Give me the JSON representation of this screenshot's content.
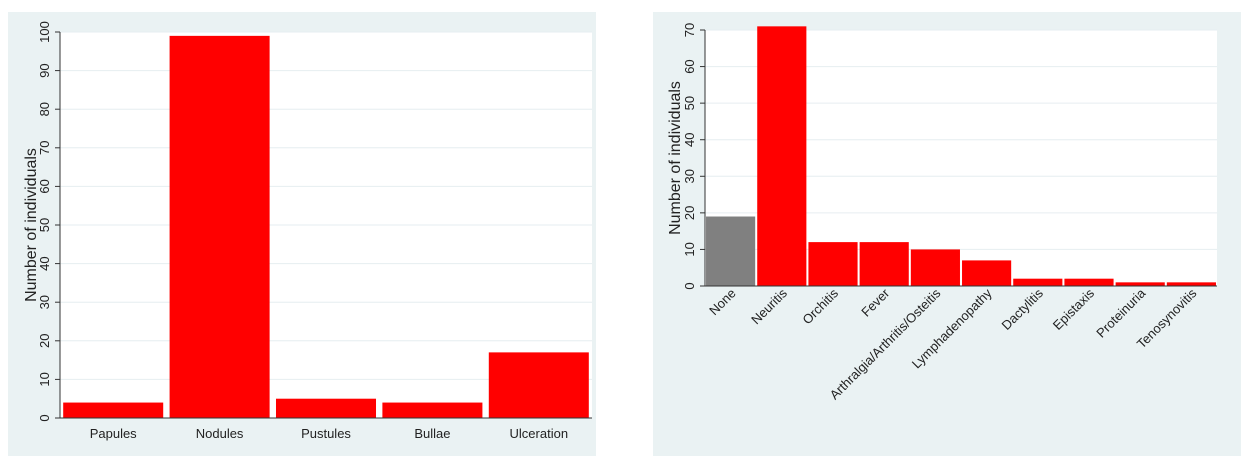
{
  "colors": {
    "panel_bg": "#eaf2f3",
    "plot_bg": "#ffffff",
    "grid": "#e6eef0",
    "bar_red": "#ff0000",
    "bar_gray": "#808080",
    "axis": "#333333"
  },
  "chart_data": [
    {
      "type": "bar",
      "title": "",
      "xlabel": "",
      "ylabel": "Number of individuals",
      "categories": [
        "Papules",
        "Nodules",
        "Pustules",
        "Bullae",
        "Ulceration"
      ],
      "values": [
        4,
        99,
        5,
        4,
        17
      ],
      "bar_colors": [
        "red",
        "red",
        "red",
        "red",
        "red"
      ],
      "ylim": [
        0,
        100
      ],
      "yticks": [
        0,
        10,
        20,
        30,
        40,
        50,
        60,
        70,
        80,
        90,
        100
      ],
      "grid": true,
      "legend": "none"
    },
    {
      "type": "bar",
      "title": "",
      "xlabel": "",
      "ylabel": "Number of individuals",
      "categories": [
        "None",
        "Neuritis",
        "Orchitis",
        "Fever",
        "Arthralgia/Arthritis/Osteitis",
        "Lymphadenopathy",
        "Dactylitis",
        "Epistaxis",
        "Proteinuria",
        "Tenosynovitis"
      ],
      "values": [
        19,
        71,
        12,
        12,
        10,
        7,
        2,
        2,
        1,
        1
      ],
      "bar_colors": [
        "gray",
        "red",
        "red",
        "red",
        "red",
        "red",
        "red",
        "red",
        "red",
        "red"
      ],
      "ylim": [
        0,
        70
      ],
      "yticks": [
        0,
        10,
        20,
        30,
        40,
        50,
        60,
        70
      ],
      "grid": true,
      "legend": "none"
    }
  ]
}
